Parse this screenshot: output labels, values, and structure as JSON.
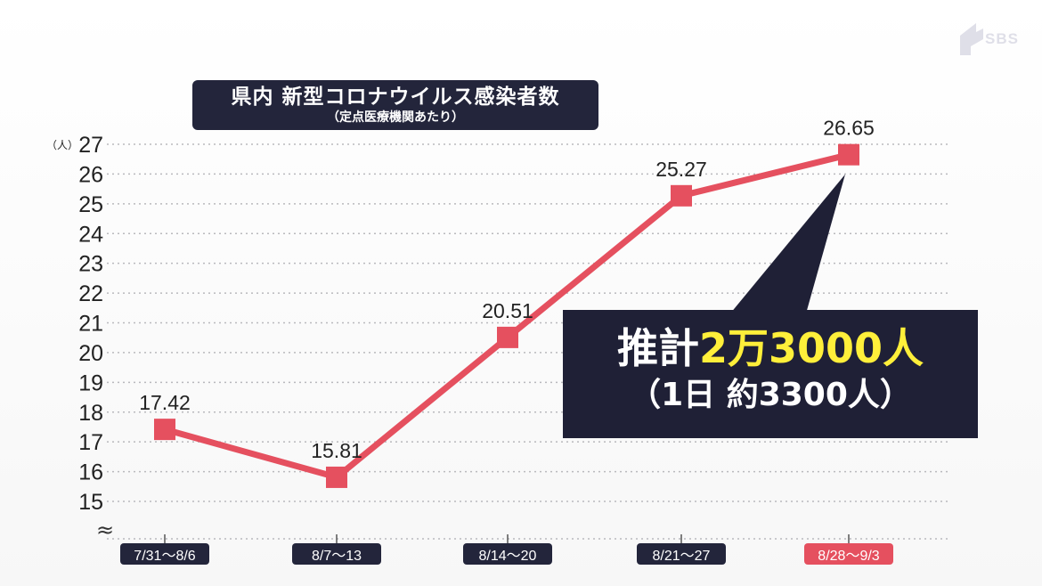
{
  "chart_data": {
    "type": "line",
    "title": "県内 新型コロナウイルス感染者数",
    "subtitle": "（定点医療機関あたり）",
    "ylabel": "（人）",
    "xlabel": "",
    "ylim": [
      15,
      27
    ],
    "yticks": [
      15,
      16,
      17,
      18,
      19,
      20,
      21,
      22,
      23,
      24,
      25,
      26,
      27
    ],
    "axis_break": true,
    "grid": true,
    "categories": [
      "7/31～8/6",
      "8/7～13",
      "8/14～20",
      "8/21～27",
      "8/28～9/3"
    ],
    "values": [
      17.42,
      15.81,
      20.51,
      25.27,
      26.65
    ],
    "data_labels": [
      "17.42",
      "15.81",
      "20.51",
      "25.27",
      "26.65"
    ],
    "highlight_index": 4,
    "line_color": "#e5505f",
    "marker_color": "#e5505f",
    "category_bg": "#23253b",
    "highlight_bg": "#e5505f"
  },
  "callout": {
    "prefix": "推計",
    "value": "2万3000人",
    "detail": "（1日 約3300人）",
    "bg_color": "#1f2036",
    "accent_color": "#ffef3a"
  },
  "logo": {
    "text": "SBS"
  }
}
